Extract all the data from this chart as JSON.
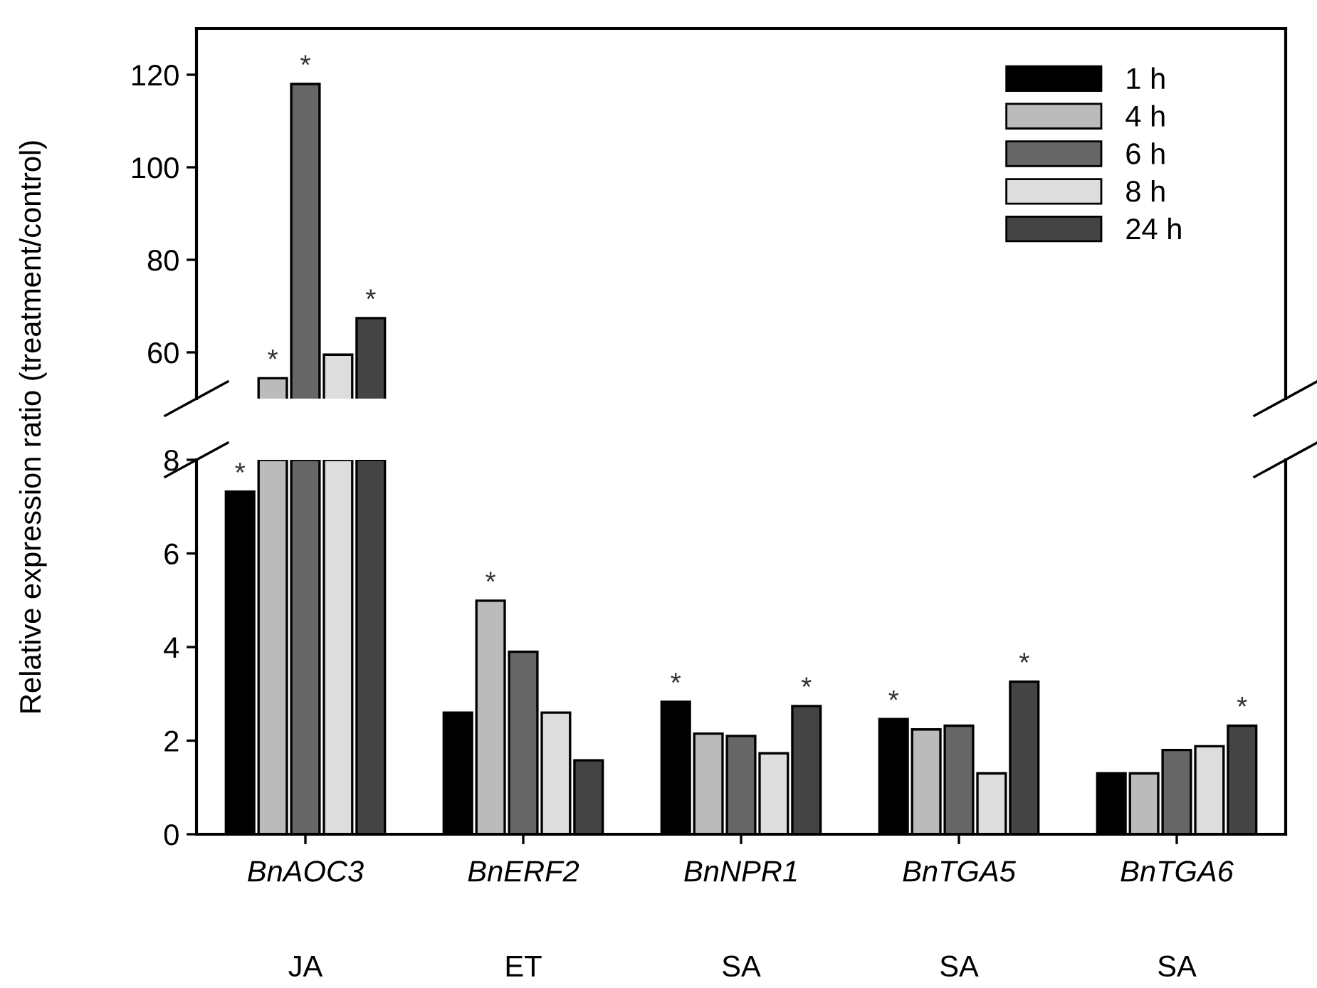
{
  "chart_data": [
    {
      "type": "bar",
      "ylabel": "Relative expression ratio (treatment/control)",
      "ylim": [
        50,
        130
      ],
      "yticks": [
        60,
        80,
        100,
        120
      ],
      "tick_labels": "y",
      "legend": "top right",
      "grid": false,
      "series": [
        {
          "name": "1 h",
          "color": "#000000",
          "values": [
            null,
            null,
            null,
            null,
            null
          ]
        },
        {
          "name": "4 h",
          "color": "#bbbbbb",
          "values": [
            54.4,
            null,
            null,
            null,
            null
          ],
          "value_labels": [
            "*",
            null,
            null,
            null,
            null
          ]
        },
        {
          "name": "6 h",
          "color": "#666666",
          "values": [
            118,
            null,
            null,
            null,
            null
          ],
          "value_labels": [
            "*",
            null,
            null,
            null,
            null
          ]
        },
        {
          "name": "8 h",
          "color": "#dddddd",
          "values": [
            59.5,
            null,
            null,
            null,
            null
          ]
        },
        {
          "name": "24 h",
          "color": "#444444",
          "values": [
            67.4,
            null,
            null,
            null,
            null
          ],
          "value_labels": [
            "*",
            null,
            null,
            null,
            null
          ]
        }
      ]
    },
    {
      "type": "bar",
      "categories": [
        "BnAOC3",
        "BnERF2",
        "BnNPR1",
        "BnTGA5",
        "BnTGA6"
      ],
      "ylim": [
        0,
        8
      ],
      "yticks": [
        0,
        2,
        4,
        6,
        8
      ],
      "grid": false,
      "annotations": [
        "JA",
        "ET",
        "SA",
        "SA",
        "SA"
      ],
      "series": [
        {
          "color": "#000000",
          "values": [
            7.32,
            2.6,
            2.83,
            2.46,
            1.3
          ],
          "value_labels": [
            "*",
            null,
            "*",
            "*",
            null
          ]
        },
        {
          "color": "#bbbbbb",
          "values": [
            8,
            4.99,
            2.15,
            2.24,
            1.3
          ],
          "value_labels": [
            null,
            "*",
            null,
            null,
            null
          ]
        },
        {
          "color": "#666666",
          "values": [
            8,
            3.9,
            2.1,
            2.32,
            1.8
          ]
        },
        {
          "color": "#dddddd",
          "values": [
            8,
            2.6,
            1.73,
            1.3,
            1.88
          ]
        },
        {
          "color": "#444444",
          "values": [
            8,
            1.58,
            2.74,
            3.26,
            2.32
          ],
          "value_labels": [
            null,
            null,
            "*",
            "*",
            "*"
          ]
        }
      ]
    }
  ]
}
